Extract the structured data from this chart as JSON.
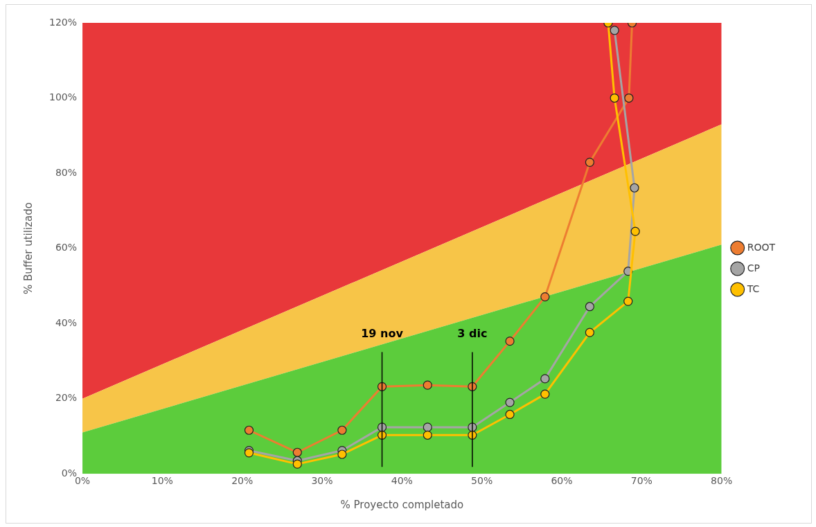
{
  "chart_data": {
    "type": "line",
    "xlabel": "% Proyecto completado",
    "ylabel": "% Buffer utilizado",
    "xlim": [
      0,
      80
    ],
    "ylim": [
      0,
      120
    ],
    "xticks": [
      {
        "value": 0,
        "label": "0%"
      },
      {
        "value": 10,
        "label": "10%"
      },
      {
        "value": 20,
        "label": "20%"
      },
      {
        "value": 30,
        "label": "30%"
      },
      {
        "value": 40,
        "label": "40%"
      },
      {
        "value": 50,
        "label": "50%"
      },
      {
        "value": 60,
        "label": "60%"
      },
      {
        "value": 70,
        "label": "70%"
      },
      {
        "value": 80,
        "label": "80%"
      }
    ],
    "yticks": [
      {
        "value": 0,
        "label": "0%"
      },
      {
        "value": 20,
        "label": "20%"
      },
      {
        "value": 40,
        "label": "40%"
      },
      {
        "value": 60,
        "label": "60%"
      },
      {
        "value": 80,
        "label": "80%"
      },
      {
        "value": 100,
        "label": "100%"
      },
      {
        "value": 120,
        "label": "120%"
      }
    ],
    "grid": false,
    "legend": "right",
    "stacked": true,
    "series": [
      {
        "type": "area",
        "color": "#5ccc3c",
        "x": [
          0,
          80
        ],
        "values": [
          11,
          61
        ]
      },
      {
        "type": "area",
        "color": "#f7c548",
        "x": [
          0,
          80
        ],
        "values": [
          9,
          32
        ]
      },
      {
        "type": "area",
        "color": "#e8383a",
        "x": [
          0,
          80
        ],
        "values": [
          100,
          27
        ]
      },
      {
        "type": "line",
        "name": "ROOT",
        "color": "#ed7d31",
        "marker": "circle",
        "line_style": "solid",
        "x": [
          20.85,
          26.9,
          32.5,
          37.5,
          43.2,
          48.8,
          53.5,
          57.9,
          63.5,
          68.4,
          68.8
        ],
        "values": [
          11.6,
          5.7,
          11.6,
          23.2,
          23.6,
          23.2,
          35.3,
          47.1,
          82.9,
          100,
          120
        ]
      },
      {
        "type": "line",
        "name": "CP",
        "color": "#a5a5a5",
        "marker": "circle",
        "line_style": "solid",
        "x": [
          20.85,
          26.9,
          32.5,
          37.5,
          43.2,
          48.8,
          53.5,
          57.9,
          63.5,
          68.3,
          69.1,
          66.6
        ],
        "values": [
          6.2,
          3.5,
          6.2,
          12.4,
          12.4,
          12.4,
          19.0,
          25.3,
          44.5,
          53.9,
          76.1,
          118
        ]
      },
      {
        "type": "line",
        "name": "TC",
        "color": "#ffc000",
        "marker": "circle",
        "line_style": "solid",
        "x": [
          20.85,
          26.9,
          32.5,
          37.5,
          43.2,
          48.8,
          53.5,
          57.9,
          63.5,
          68.3,
          69.2,
          66.6,
          65.8
        ],
        "values": [
          5.6,
          2.6,
          5.2,
          10.3,
          10.3,
          10.3,
          15.8,
          21.2,
          37.6,
          45.9,
          64.5,
          100,
          120
        ]
      }
    ],
    "ref_lines": [
      {
        "axis": "x",
        "value": 37.5,
        "label": "19 nov",
        "color": "#000000"
      },
      {
        "axis": "x",
        "value": 48.8,
        "label": "3 dic",
        "color": "#000000"
      }
    ]
  }
}
